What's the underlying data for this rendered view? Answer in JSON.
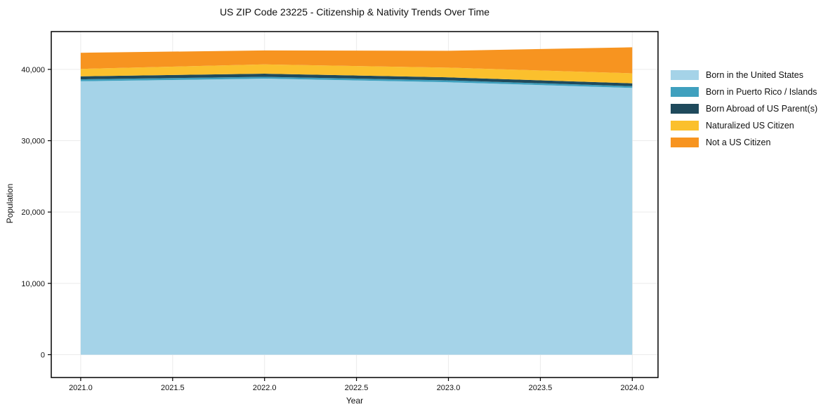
{
  "chart_data": {
    "type": "area",
    "stacked": true,
    "title": "US ZIP Code 23225 - Citizenship & Nativity Trends Over Time",
    "xlabel": "Year",
    "ylabel": "Population",
    "x": [
      2021,
      2022,
      2023,
      2024
    ],
    "x_ticks": [
      2021.0,
      2021.5,
      2022.0,
      2022.5,
      2023.0,
      2023.5,
      2024.0
    ],
    "x_tick_labels": [
      "2021.0",
      "2021.5",
      "2022.0",
      "2022.5",
      "2023.0",
      "2023.5",
      "2024.0"
    ],
    "y_ticks": [
      0,
      10000,
      20000,
      30000,
      40000
    ],
    "y_tick_labels": [
      "0",
      "10,000",
      "20,000",
      "30,000",
      "40,000"
    ],
    "xlim": [
      2020.84,
      2024.14
    ],
    "ylim": [
      -3200,
      45300
    ],
    "grid": true,
    "legend_position": "right-outside",
    "series": [
      {
        "name": "Born in the United States",
        "color": "#A5D3E8",
        "values": [
          38330,
          38700,
          38200,
          37400
        ]
      },
      {
        "name": "Born in Puerto Rico / Islands",
        "color": "#3FA0BE",
        "values": [
          270,
          250,
          260,
          250
        ]
      },
      {
        "name": "Born Abroad of US Parent(s)",
        "color": "#1F4A5C",
        "values": [
          420,
          450,
          430,
          400
        ]
      },
      {
        "name": "Naturalized US Citizen",
        "color": "#FBC02D",
        "values": [
          1050,
          1300,
          1350,
          1400
        ]
      },
      {
        "name": "Not a US Citizen",
        "color": "#F79420",
        "values": [
          2260,
          1950,
          2360,
          3650
        ]
      }
    ],
    "totals": [
      42330,
      42650,
      42600,
      43100
    ],
    "grid_color": "#ebebeb",
    "spine_color": "#000000",
    "text_color": "#111111"
  }
}
